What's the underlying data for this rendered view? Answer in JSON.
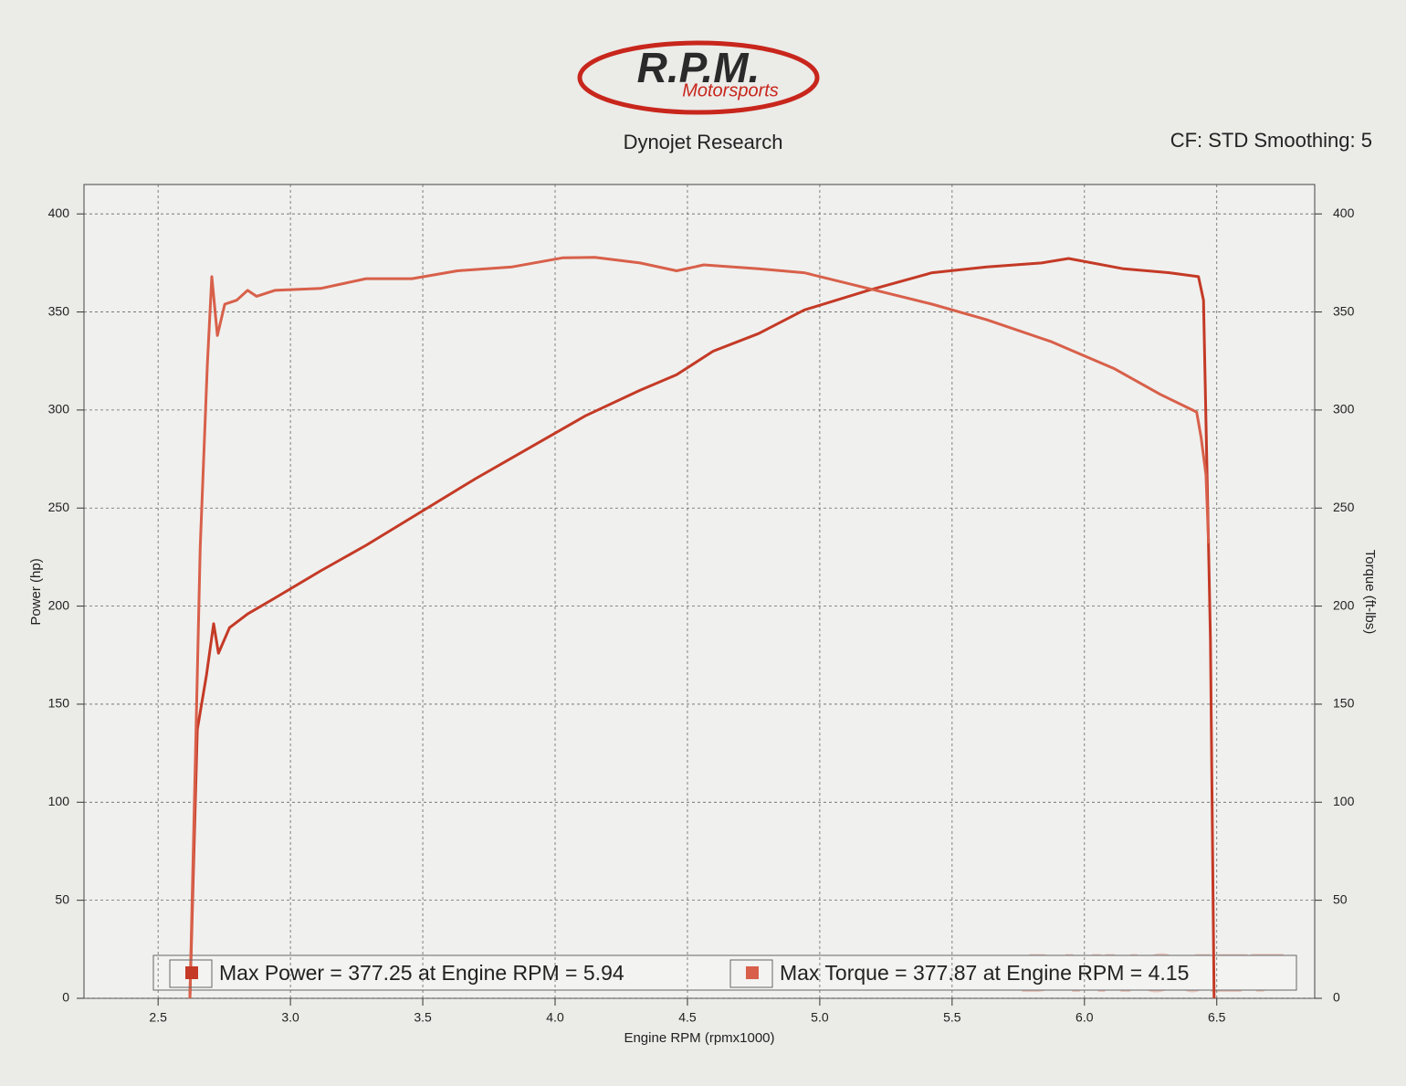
{
  "header": {
    "logo": "R.P.M.",
    "logo_sub": "Motorsports",
    "title": "Dynojet Research",
    "settings": "CF: STD Smoothing: 5"
  },
  "chart_data": {
    "type": "line",
    "xlabel": "Engine RPM (rpmx1000)",
    "ylabel": "Power (hp)",
    "y2label": "Torque (ft-lbs)",
    "watermark": "DYNOJET",
    "xlim": [
      2.22,
      6.87
    ],
    "ylim": [
      0,
      415
    ],
    "y2lim": [
      0,
      415
    ],
    "xticks": [
      2.5,
      {
        "value": 3,
        "label": "3.0"
      },
      3.5,
      {
        "value": 4,
        "label": "4.0"
      },
      4.5,
      {
        "value": 5,
        "label": "5.0"
      },
      5.5,
      {
        "value": 6,
        "label": "6.0"
      },
      6.5
    ],
    "yticks": [
      0,
      50,
      100,
      150,
      200,
      250,
      300,
      350,
      400
    ],
    "y2ticks": [
      0,
      50,
      100,
      150,
      200,
      250,
      300,
      350,
      400
    ],
    "grid": true,
    "series": [
      {
        "name": "Max Power = 377.25 at Engine RPM = 5.94",
        "color": "#c43a26",
        "axis": "y",
        "x": [
          2.62,
          2.648,
          2.683,
          2.71,
          2.728,
          2.77,
          2.838,
          2.94,
          3.114,
          3.286,
          3.493,
          3.7,
          3.907,
          4.114,
          4.32,
          4.459,
          4.597,
          4.769,
          4.941,
          5.183,
          5.424,
          5.631,
          5.838,
          5.94,
          6.148,
          6.321,
          6.431,
          6.45,
          6.476,
          6.49
        ],
        "values": [
          0,
          137,
          165,
          191,
          176,
          189,
          196,
          204,
          218,
          231,
          248,
          265,
          281,
          297,
          310,
          318,
          330,
          339,
          351,
          361,
          370,
          373,
          375,
          377.25,
          372,
          370,
          368,
          356,
          183,
          0
        ]
      },
      {
        "name": "Max Torque = 377.87 at Engine RPM = 4.15",
        "color": "#d8604a",
        "axis": "y2",
        "x": [
          2.62,
          2.659,
          2.686,
          2.703,
          2.724,
          2.752,
          2.797,
          2.838,
          2.872,
          2.941,
          3.114,
          3.286,
          3.459,
          3.631,
          3.838,
          4.028,
          4.15,
          4.321,
          4.459,
          4.562,
          4.769,
          4.941,
          5.183,
          5.424,
          5.631,
          5.872,
          6.114,
          6.286,
          6.424,
          6.441,
          6.459,
          6.469
        ],
        "values": [
          0,
          230,
          323,
          368,
          338,
          354,
          356,
          361,
          358,
          361,
          362,
          367,
          367,
          371,
          373,
          377.6,
          377.87,
          375,
          371,
          374,
          372,
          370,
          362,
          354,
          346,
          335,
          321,
          308,
          299,
          286,
          267,
          232
        ]
      }
    ]
  }
}
